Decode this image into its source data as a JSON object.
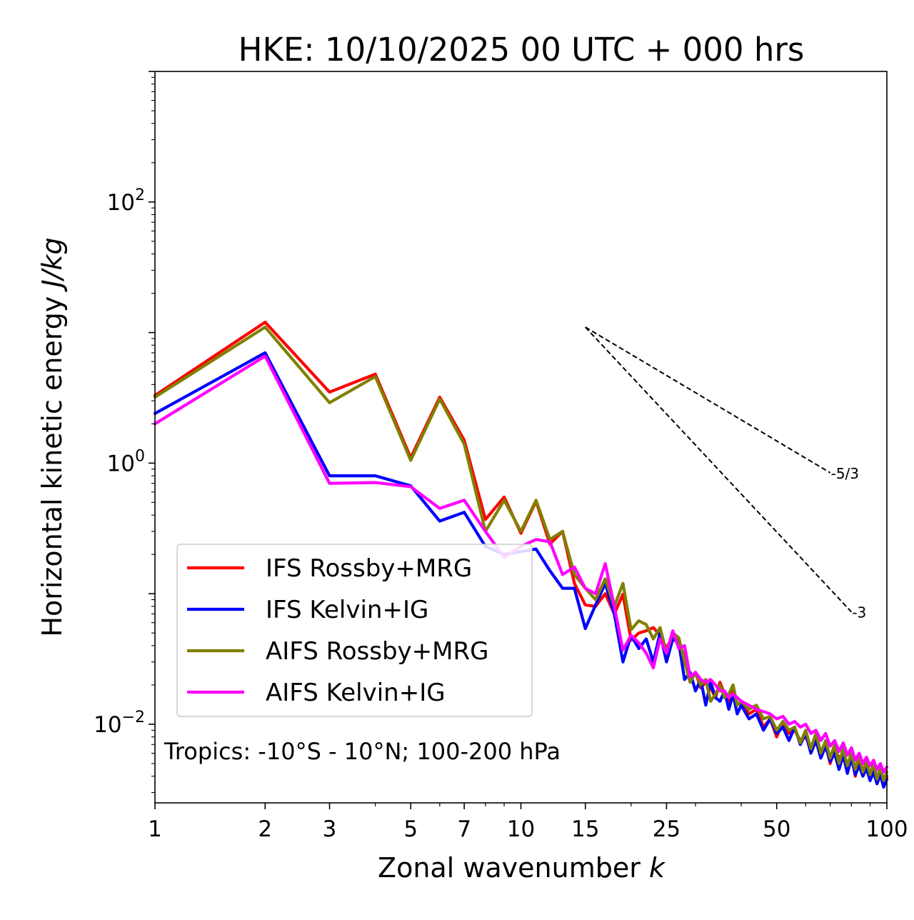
{
  "chart_data": {
    "type": "line",
    "title": "HKE: 10/10/2025 00 UTC + 000 hrs",
    "xlabel": "Zonal wavenumber",
    "xlabel_var": "k",
    "ylabel": "Horizontal kinetic energy",
    "ylabel_unit": "J/kg",
    "xscale": "log",
    "yscale": "log",
    "xlim": [
      1,
      100
    ],
    "ylim": [
      0.0025,
      1000
    ],
    "xticks": [
      1,
      2,
      3,
      5,
      7,
      10,
      15,
      25,
      50,
      100
    ],
    "xtick_labels": [
      "1",
      "2",
      "3",
      "5",
      "7",
      "10",
      "15",
      "25",
      "50",
      "100"
    ],
    "yticks": [
      {
        "value": 0.01,
        "base": "10",
        "exp": "−2"
      },
      {
        "value": 1,
        "base": "10",
        "exp": "0"
      },
      {
        "value": 100,
        "base": "10",
        "exp": "2"
      }
    ],
    "annotation": "Tropics: -10°S - 10°N; 100-200 hPa",
    "legend_position": "lower-left",
    "reference_slopes": [
      {
        "label": "-5/3",
        "slope": -1.6667,
        "x_start": 15,
        "y_start": 11,
        "x_end": 70
      },
      {
        "label": "-3",
        "slope": -3,
        "x_start": 15,
        "y_start": 11,
        "x_end": 80
      }
    ],
    "series": [
      {
        "name": "IFS Rossby+MRG",
        "color": "#ff0000",
        "x": [
          1,
          2,
          3,
          4,
          5,
          6,
          7,
          8,
          9,
          10,
          11,
          12,
          13,
          14,
          15,
          16,
          17,
          18,
          19,
          20,
          21,
          22,
          23,
          24,
          25,
          26,
          27,
          28,
          29,
          30,
          31,
          32,
          33,
          34,
          35,
          36,
          37,
          38,
          39,
          40,
          42,
          44,
          46,
          48,
          50,
          52,
          54,
          56,
          58,
          60,
          62,
          64,
          66,
          68,
          70,
          72,
          74,
          76,
          78,
          80,
          82,
          84,
          86,
          88,
          90,
          92,
          94,
          96,
          98,
          100
        ],
        "y": [
          3.3,
          12,
          3.5,
          4.8,
          1.1,
          3.2,
          1.5,
          0.37,
          0.55,
          0.29,
          0.51,
          0.24,
          0.3,
          0.12,
          0.082,
          0.08,
          0.1,
          0.07,
          0.099,
          0.044,
          0.05,
          0.052,
          0.055,
          0.048,
          0.038,
          0.048,
          0.044,
          0.032,
          0.021,
          0.025,
          0.019,
          0.021,
          0.019,
          0.016,
          0.021,
          0.017,
          0.015,
          0.018,
          0.014,
          0.015,
          0.012,
          0.013,
          0.0095,
          0.011,
          0.008,
          0.0105,
          0.0085,
          0.009,
          0.0075,
          0.008,
          0.0065,
          0.0085,
          0.006,
          0.007,
          0.005,
          0.0065,
          0.0055,
          0.006,
          0.0045,
          0.006,
          0.004,
          0.0055,
          0.0042,
          0.005,
          0.0038,
          0.0045,
          0.0036,
          0.0042,
          0.0034,
          0.004
        ]
      },
      {
        "name": "IFS Kelvin+IG",
        "color": "#0000ff",
        "x": [
          1,
          2,
          3,
          4,
          5,
          6,
          7,
          8,
          9,
          10,
          11,
          12,
          13,
          14,
          15,
          16,
          17,
          18,
          19,
          20,
          21,
          22,
          23,
          24,
          25,
          26,
          27,
          28,
          29,
          30,
          31,
          32,
          33,
          34,
          35,
          36,
          37,
          38,
          39,
          40,
          42,
          44,
          46,
          48,
          50,
          52,
          54,
          56,
          58,
          60,
          62,
          64,
          66,
          68,
          70,
          72,
          74,
          76,
          78,
          80,
          82,
          84,
          86,
          88,
          90,
          92,
          94,
          96,
          98,
          100
        ],
        "y": [
          2.4,
          7,
          0.8,
          0.8,
          0.67,
          0.36,
          0.42,
          0.23,
          0.2,
          0.21,
          0.22,
          0.15,
          0.11,
          0.11,
          0.054,
          0.082,
          0.12,
          0.07,
          0.03,
          0.048,
          0.038,
          0.045,
          0.03,
          0.05,
          0.03,
          0.045,
          0.042,
          0.022,
          0.025,
          0.018,
          0.022,
          0.014,
          0.021,
          0.016,
          0.015,
          0.018,
          0.013,
          0.017,
          0.012,
          0.014,
          0.011,
          0.012,
          0.009,
          0.011,
          0.0085,
          0.0095,
          0.0075,
          0.0095,
          0.007,
          0.0085,
          0.006,
          0.0075,
          0.0055,
          0.0068,
          0.0052,
          0.006,
          0.0045,
          0.0058,
          0.0042,
          0.0055,
          0.0041,
          0.0048,
          0.004,
          0.0046,
          0.0037,
          0.0043,
          0.0035,
          0.0041,
          0.0033,
          0.0038
        ]
      },
      {
        "name": "AIFS Rossby+MRG",
        "color": "#808000",
        "x": [
          1,
          2,
          3,
          4,
          5,
          6,
          7,
          8,
          9,
          10,
          11,
          12,
          13,
          14,
          15,
          16,
          17,
          18,
          19,
          20,
          21,
          22,
          23,
          24,
          25,
          26,
          27,
          28,
          29,
          30,
          31,
          32,
          33,
          34,
          35,
          36,
          37,
          38,
          39,
          40,
          42,
          44,
          46,
          48,
          50,
          52,
          54,
          56,
          58,
          60,
          62,
          64,
          66,
          68,
          70,
          72,
          74,
          76,
          78,
          80,
          82,
          84,
          86,
          88,
          90,
          92,
          94,
          96,
          98,
          100
        ],
        "y": [
          3.2,
          11,
          2.9,
          4.6,
          1.05,
          3.1,
          1.4,
          0.3,
          0.52,
          0.3,
          0.52,
          0.26,
          0.3,
          0.14,
          0.11,
          0.09,
          0.13,
          0.08,
          0.12,
          0.053,
          0.062,
          0.058,
          0.045,
          0.055,
          0.035,
          0.05,
          0.046,
          0.03,
          0.021,
          0.025,
          0.02,
          0.022,
          0.015,
          0.017,
          0.02,
          0.016,
          0.017,
          0.02,
          0.014,
          0.015,
          0.013,
          0.014,
          0.011,
          0.0115,
          0.009,
          0.0105,
          0.009,
          0.0095,
          0.0072,
          0.009,
          0.0065,
          0.0085,
          0.006,
          0.0075,
          0.0055,
          0.007,
          0.005,
          0.0065,
          0.0048,
          0.006,
          0.0045,
          0.0058,
          0.0043,
          0.0052,
          0.0041,
          0.005,
          0.0038,
          0.0047,
          0.0037,
          0.0043
        ]
      },
      {
        "name": "AIFS Kelvin+IG",
        "color": "#ff00ff",
        "x": [
          1,
          2,
          3,
          4,
          5,
          6,
          7,
          8,
          9,
          10,
          11,
          12,
          13,
          14,
          15,
          16,
          17,
          18,
          19,
          20,
          21,
          22,
          23,
          24,
          25,
          26,
          27,
          28,
          29,
          30,
          31,
          32,
          33,
          34,
          35,
          36,
          37,
          38,
          39,
          40,
          42,
          44,
          46,
          48,
          50,
          52,
          54,
          56,
          58,
          60,
          62,
          64,
          66,
          68,
          70,
          72,
          74,
          76,
          78,
          80,
          82,
          84,
          86,
          88,
          90,
          92,
          94,
          96,
          98,
          100
        ],
        "y": [
          2,
          6.6,
          0.7,
          0.71,
          0.66,
          0.45,
          0.52,
          0.3,
          0.19,
          0.23,
          0.26,
          0.25,
          0.14,
          0.16,
          0.11,
          0.1,
          0.17,
          0.08,
          0.037,
          0.048,
          0.042,
          0.035,
          0.027,
          0.045,
          0.035,
          0.052,
          0.038,
          0.04,
          0.023,
          0.025,
          0.022,
          0.021,
          0.022,
          0.02,
          0.018,
          0.018,
          0.016,
          0.017,
          0.016,
          0.015,
          0.014,
          0.013,
          0.0125,
          0.012,
          0.011,
          0.0115,
          0.01,
          0.0105,
          0.0095,
          0.01,
          0.0085,
          0.009,
          0.0075,
          0.0085,
          0.0068,
          0.0075,
          0.0062,
          0.0072,
          0.0058,
          0.0066,
          0.0053,
          0.006,
          0.005,
          0.0056,
          0.0048,
          0.0053,
          0.0045,
          0.005,
          0.0043,
          0.0047
        ]
      }
    ]
  }
}
